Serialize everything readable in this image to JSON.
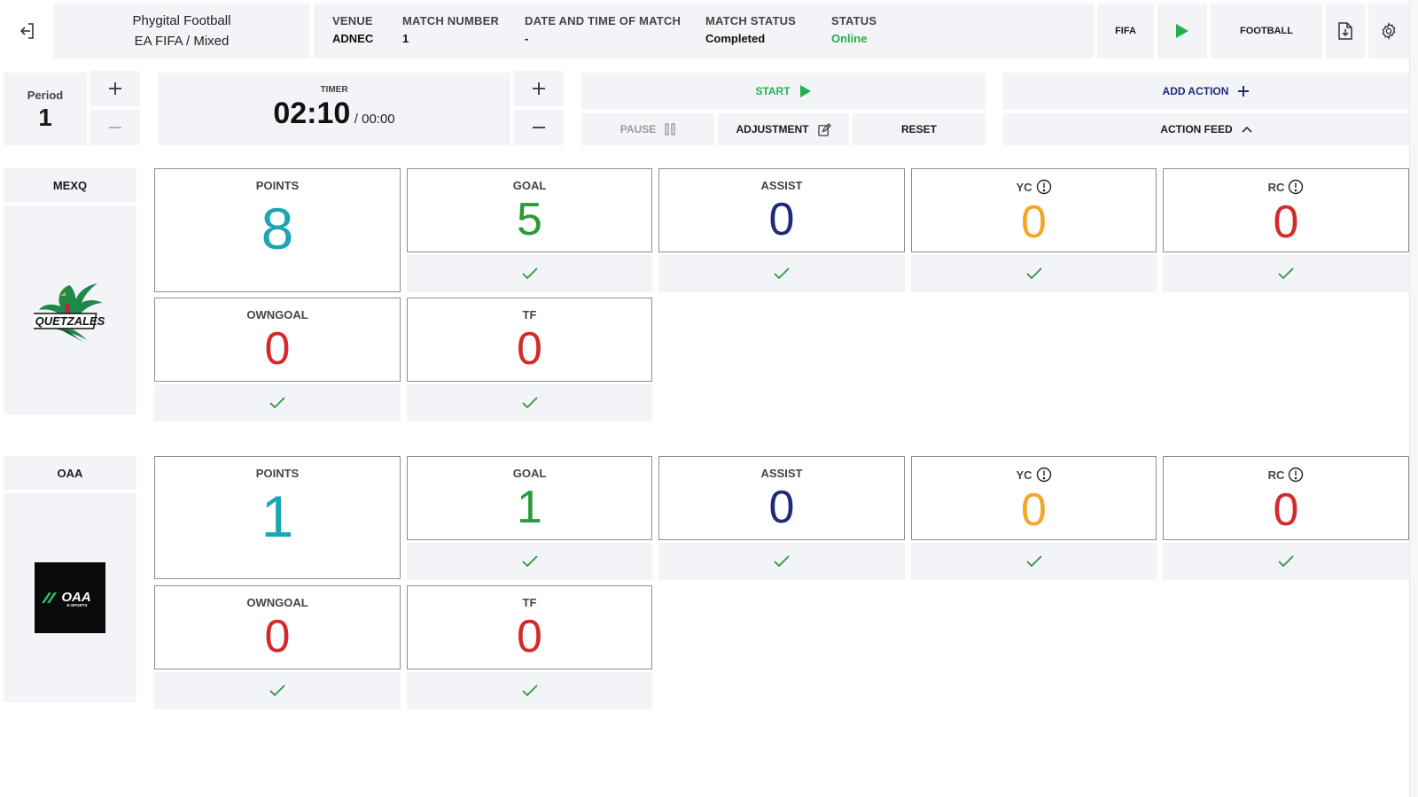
{
  "header": {
    "title_line1": "Phygital Football",
    "title_line2": "EA FIFA / Mixed",
    "venue": {
      "label": "VENUE",
      "value": "ADNEC"
    },
    "match_number": {
      "label": "MATCH NUMBER",
      "value": "1"
    },
    "date_time": {
      "label": "DATE AND TIME OF MATCH",
      "value": "-"
    },
    "match_status": {
      "label": "MATCH STATUS",
      "value": "Completed"
    },
    "status": {
      "label": "STATUS",
      "value": "Online"
    },
    "fifa_label": "FIFA",
    "football_label": "FOOTBALL"
  },
  "controls": {
    "period_label": "Period",
    "period_value": "1",
    "timer_label": "TIMER",
    "timer_value": "02:10",
    "timer_total": "/ 00:00",
    "start_label": "START",
    "pause_label": "PAUSE",
    "adjustment_label": "ADJUSTMENT",
    "reset_label": "RESET",
    "add_action_label": "ADD ACTION",
    "action_feed_label": "ACTION FEED"
  },
  "teams": [
    {
      "name": "MEXQ",
      "logo_text": "QUETZALES",
      "stats": {
        "points": {
          "label": "POINTS",
          "value": "8"
        },
        "goal": {
          "label": "GOAL",
          "value": "5"
        },
        "assist": {
          "label": "ASSIST",
          "value": "0"
        },
        "yc": {
          "label": "YC",
          "value": "0"
        },
        "rc": {
          "label": "RC",
          "value": "0"
        },
        "owngoal": {
          "label": "OWNGOAL",
          "value": "0"
        },
        "tf": {
          "label": "TF",
          "value": "0"
        }
      }
    },
    {
      "name": "OAA",
      "logo_text": "OAA",
      "logo_subtext": "E-SPORTS",
      "stats": {
        "points": {
          "label": "POINTS",
          "value": "1"
        },
        "goal": {
          "label": "GOAL",
          "value": "1"
        },
        "assist": {
          "label": "ASSIST",
          "value": "0"
        },
        "yc": {
          "label": "YC",
          "value": "0"
        },
        "rc": {
          "label": "RC",
          "value": "0"
        },
        "owngoal": {
          "label": "OWNGOAL",
          "value": "0"
        },
        "tf": {
          "label": "TF",
          "value": "0"
        }
      }
    }
  ],
  "icons": {
    "exit": "exit-icon",
    "play": "play-icon",
    "download": "file-download-icon",
    "settings": "gear-icon",
    "plus": "plus-icon",
    "minus": "minus-icon",
    "pause": "pause-icon",
    "edit": "edit-icon",
    "chevron": "chevron-up-icon",
    "check": "check-icon",
    "info": "info-icon"
  },
  "colors": {
    "points": "#1aa6b3",
    "goal": "#2a9a3a",
    "assist": "#1f2a7a",
    "yc": "#f5a623",
    "rc": "#d42a2a",
    "online": "#22b14c",
    "start": "#22b14c"
  }
}
